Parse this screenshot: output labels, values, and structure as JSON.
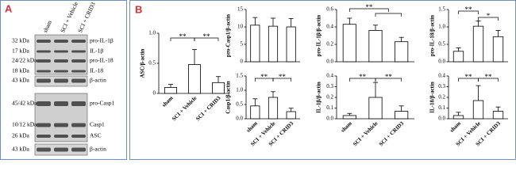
{
  "panel_a": {
    "label": "A",
    "lanes": [
      "sham",
      "SCI + Vehicle",
      "SCI + CRID3"
    ],
    "sizes": [
      "32 kDa",
      "17 kDa",
      "24/22 kDa",
      "18 kDa",
      "43 kDa",
      "45/42 kDa",
      "10/12 kDa",
      "26 kDa",
      "43 kDa"
    ],
    "proteins": [
      "pro-IL-1β",
      "IL-1β",
      "pro-IL-18",
      "IL-18",
      "β-actin",
      "pro-Casp1",
      "Casp1",
      "ASC",
      "β-actin"
    ]
  },
  "panel_b": {
    "label": "B"
  },
  "chart_data": [
    {
      "type": "bar",
      "y_label": "ASC/β-actin",
      "categories": [
        "sham",
        "SCI + Vehicle",
        "SCI + CRID3"
      ],
      "values": [
        0.1,
        0.48,
        0.18
      ],
      "errors": [
        0.05,
        0.25,
        0.1
      ],
      "ylim": [
        0,
        1
      ],
      "yticks": [
        0,
        0.5,
        {
          "value": 1,
          "label": "1.0"
        }
      ],
      "annotations": [
        "**",
        "**"
      ],
      "color": "#ffffff"
    },
    {
      "type": "bar",
      "y_label": "pro-Casp1/β-actin",
      "categories": [
        null,
        null,
        null
      ],
      "values": [
        10.5,
        10.2,
        10
      ],
      "errors": [
        2.2,
        2.3,
        2.4
      ],
      "ylim": [
        0,
        15
      ],
      "yticks": [
        0,
        5,
        10,
        15
      ],
      "annotations": [],
      "color": "#ffffff"
    },
    {
      "type": "bar",
      "y_label": "pro-IL-1β/β-actin",
      "categories": [
        null,
        null,
        null
      ],
      "values": [
        0.43,
        0.36,
        0.23
      ],
      "errors": [
        0.07,
        0.06,
        0.05
      ],
      "ylim": [
        0,
        0.6
      ],
      "yticks": [
        {
          "value": 0,
          "label": "0.0"
        },
        0.2,
        0.4,
        0.6
      ],
      "annotations": [
        "**"
      ],
      "color": "#ffffff"
    },
    {
      "type": "bar",
      "y_label": "pro-IL-18/β-actin",
      "categories": [
        null,
        null,
        null
      ],
      "values": [
        0.3,
        1.02,
        0.72
      ],
      "errors": [
        0.1,
        0.15,
        0.18
      ],
      "ylim": [
        0,
        1.5
      ],
      "yticks": [
        {
          "value": 0,
          "label": "0.0"
        },
        0.5,
        {
          "value": 1,
          "label": "1.0"
        },
        1.5
      ],
      "annotations": [
        "**",
        "*"
      ],
      "color": "#ffffff"
    },
    {
      "type": "bar",
      "y_label": "Casp1/β-actin",
      "categories": [
        "sham",
        "SCI + Vehicle",
        "SCI + CRID3"
      ],
      "values": [
        0.45,
        0.75,
        0.25
      ],
      "errors": [
        0.25,
        0.2,
        0.12
      ],
      "ylim": [
        0,
        1.5
      ],
      "yticks": [
        {
          "value": 0,
          "label": "0.0"
        },
        0.5,
        {
          "value": 1,
          "label": "1.0"
        },
        1.5
      ],
      "annotations": [
        "**",
        "**"
      ],
      "color": "#ffffff"
    },
    {
      "type": "bar",
      "y_label": "IL-1β/β-actin",
      "categories": [
        "sham",
        "SCI + Vehicle",
        "SCI + CRID3"
      ],
      "values": [
        0.03,
        0.2,
        0.07
      ],
      "errors": [
        0.02,
        0.14,
        0.05
      ],
      "ylim": [
        0,
        0.4
      ],
      "yticks": [
        {
          "value": 0,
          "label": "0.0"
        },
        0.1,
        0.2,
        0.3,
        0.4
      ],
      "annotations": [
        "**",
        "**"
      ],
      "color": "#ffffff"
    },
    {
      "type": "bar",
      "y_label": "IL-18/β-actin",
      "categories": [
        "sham",
        "SCI + Vehicle",
        "SCI + CRID3"
      ],
      "values": [
        0.03,
        0.17,
        0.07
      ],
      "errors": [
        0.03,
        0.14,
        0.04
      ],
      "ylim": [
        0,
        0.4
      ],
      "yticks": [
        {
          "value": 0,
          "label": "0.0"
        },
        0.1,
        0.2,
        0.3,
        0.4
      ],
      "annotations": [
        "**",
        "**"
      ],
      "color": "#ffffff"
    }
  ]
}
